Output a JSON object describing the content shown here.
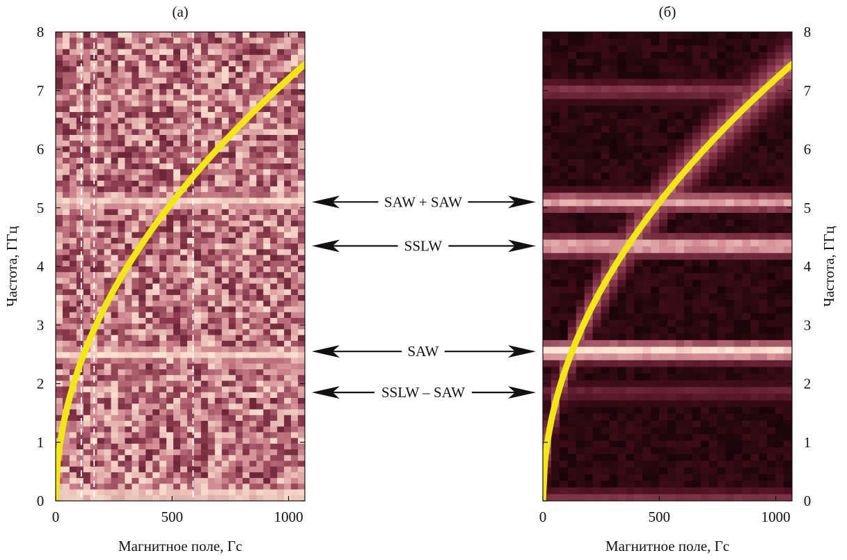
{
  "chart_data": [
    {
      "type": "heatmap",
      "panel_label": "(a)",
      "xlabel": "Магнитное поле, Гс",
      "ylabel": "Частота, ГГц",
      "xlim": [
        0,
        1070
      ],
      "ylim": [
        0,
        8
      ],
      "xticks": [
        "0",
        "500",
        "1000"
      ],
      "xtick_values": [
        0,
        500,
        1000
      ],
      "yticks": [
        "0",
        "1",
        "2",
        "3",
        "4",
        "5",
        "6",
        "7",
        "8"
      ],
      "ytick_values": [
        0,
        1,
        2,
        3,
        4,
        5,
        6,
        7,
        8
      ],
      "y_axis_side": "left",
      "colormap": [
        "#1a0508",
        "#4a1020",
        "#8a3a4e",
        "#d08890",
        "#f8dccc",
        "#fffde6"
      ],
      "bands": [
        {
          "freq": 0.1,
          "intensity": 0.95
        },
        {
          "freq": 2.5,
          "intensity": 0.9
        },
        {
          "freq": 5.1,
          "intensity": 0.9
        },
        {
          "freq": 6.85,
          "intensity": 0.6
        },
        {
          "freq": 1.85,
          "intensity": 0.5
        },
        {
          "freq": 3.1,
          "intensity": 0.45
        }
      ],
      "dashed_lines_field": [
        110,
        165,
        590
      ],
      "curve": {
        "color": "#f2e614",
        "f_at_1070": 7.45,
        "exponent": 0.5
      },
      "grid": false
    },
    {
      "type": "heatmap",
      "panel_label": "(б)",
      "xlabel": "Магнитное поле, Гс",
      "ylabel": "Частота, ГГц",
      "xlim": [
        0,
        1070
      ],
      "ylim": [
        0,
        8
      ],
      "xticks": [
        "0",
        "500",
        "1000"
      ],
      "xtick_values": [
        0,
        500,
        1000
      ],
      "yticks": [
        "0",
        "1",
        "2",
        "3",
        "4",
        "5",
        "6",
        "7",
        "8"
      ],
      "ytick_values": [
        0,
        1,
        2,
        3,
        4,
        5,
        6,
        7,
        8
      ],
      "y_axis_side": "right",
      "colormap": [
        "#110206",
        "#4a1020",
        "#8a3a4e",
        "#d08890",
        "#f8dccc",
        "#fffde6"
      ],
      "bands": [
        {
          "freq": 2.55,
          "intensity": 0.95
        },
        {
          "freq": 4.35,
          "intensity": 0.85
        },
        {
          "freq": 5.1,
          "intensity": 0.75
        },
        {
          "freq": 7.0,
          "intensity": 0.45
        },
        {
          "freq": 1.85,
          "intensity": 0.35
        },
        {
          "freq": 0.05,
          "intensity": 0.4
        }
      ],
      "curve": {
        "color": "#f2e614",
        "f_at_1070": 7.45,
        "exponent": 0.5
      },
      "grid": false
    }
  ],
  "annotations": [
    {
      "label": "SAW + SAW",
      "freq": 5.1
    },
    {
      "label": "SSLW",
      "freq": 4.35
    },
    {
      "label": "SAW",
      "freq": 2.55
    },
    {
      "label": "SSLW – SAW",
      "freq": 1.85
    }
  ]
}
